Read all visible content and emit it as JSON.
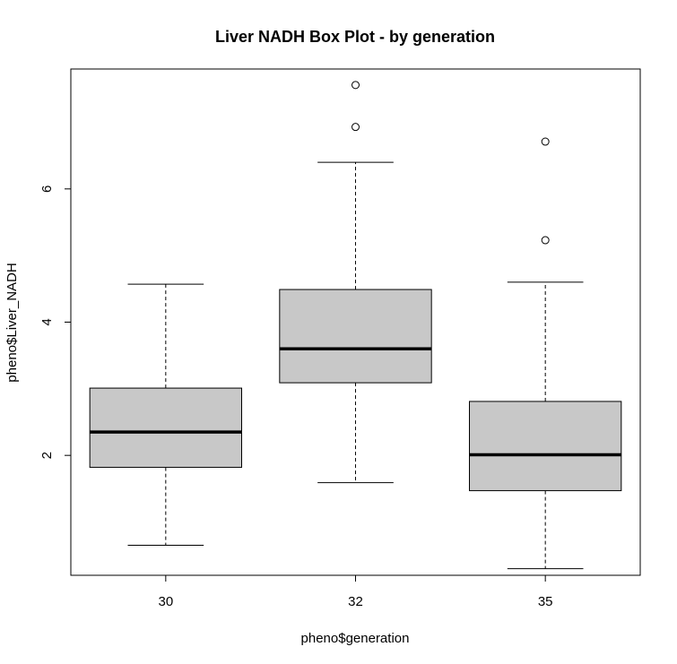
{
  "chart_data": {
    "type": "boxplot",
    "title": "Liver NADH Box Plot - by generation",
    "xlabel": "pheno$generation",
    "ylabel": "pheno$Liver_NADH",
    "categories": [
      "30",
      "32",
      "35"
    ],
    "y_ticks": [
      2,
      4,
      6
    ],
    "ylim": [
      0.2,
      7.8
    ],
    "grid": false,
    "legend": "none",
    "colors": {
      "box_fill": "#c8c8c8",
      "stroke": "#000000"
    },
    "boxes": [
      {
        "category": "30",
        "whisker_low": 0.65,
        "q1": 1.82,
        "median": 2.35,
        "q3": 3.01,
        "whisker_high": 4.57,
        "outliers": []
      },
      {
        "category": "32",
        "whisker_low": 1.59,
        "q1": 3.09,
        "median": 3.6,
        "q3": 4.49,
        "whisker_high": 6.4,
        "outliers": [
          6.93,
          7.56
        ]
      },
      {
        "category": "35",
        "whisker_low": 0.3,
        "q1": 1.47,
        "median": 2.01,
        "q3": 2.81,
        "whisker_high": 4.6,
        "outliers": [
          5.23,
          6.71
        ]
      }
    ]
  }
}
